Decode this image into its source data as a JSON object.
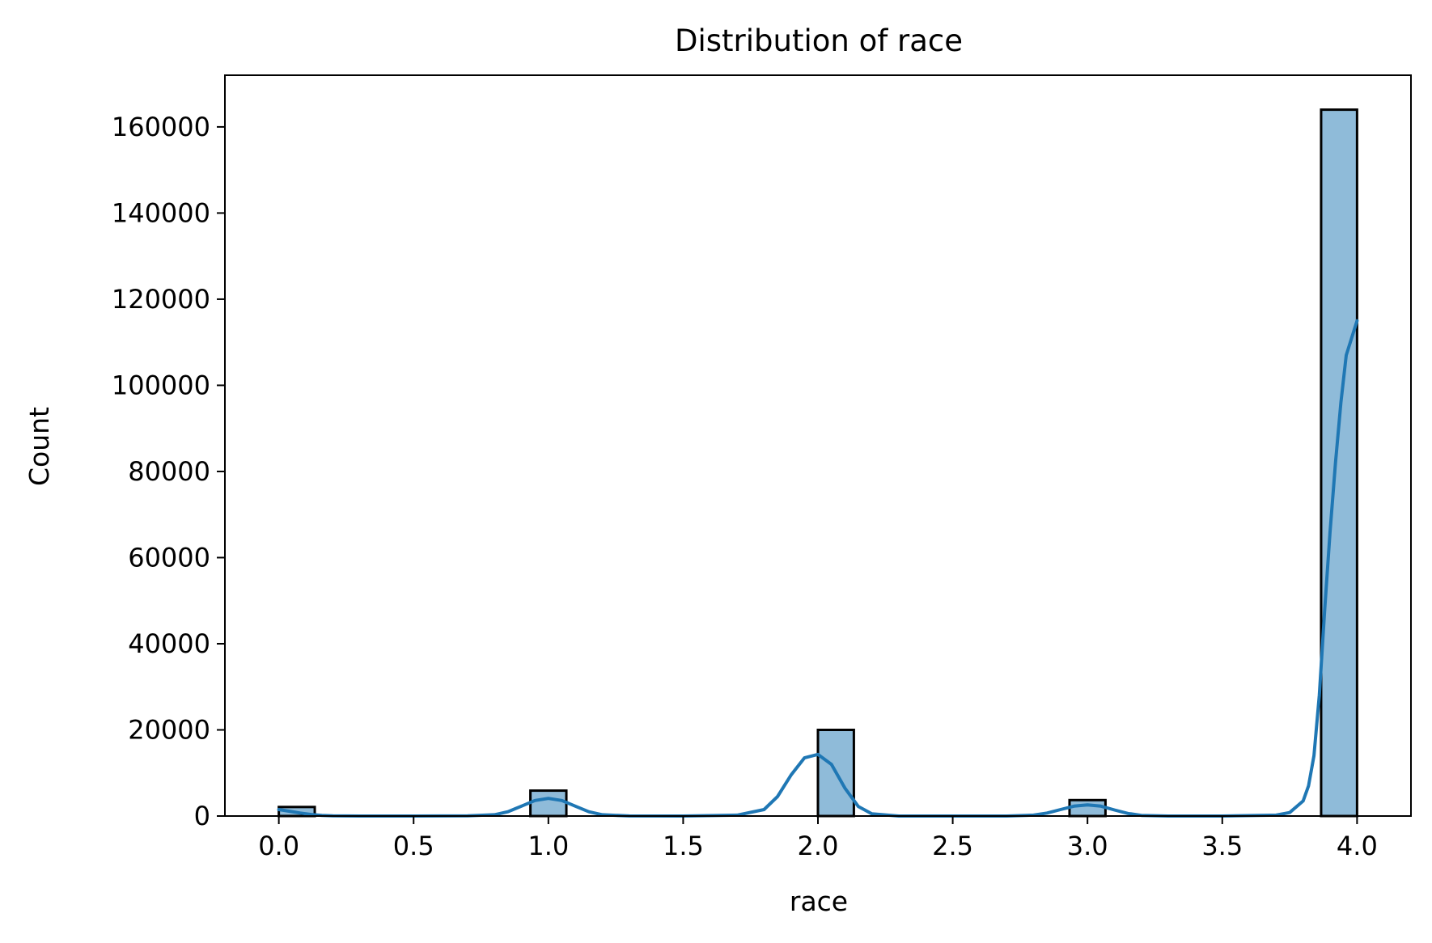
{
  "chart_data": {
    "type": "bar",
    "title": "Distribution of race",
    "xlabel": "race",
    "ylabel": "Count",
    "xlim": [
      -0.2,
      4.2
    ],
    "ylim": [
      0,
      172000
    ],
    "x_ticks": [
      0.0,
      0.5,
      1.0,
      1.5,
      2.0,
      2.5,
      3.0,
      3.5,
      4.0
    ],
    "x_tick_labels": [
      "0.0",
      "0.5",
      "1.0",
      "1.5",
      "2.0",
      "2.5",
      "3.0",
      "3.5",
      "4.0"
    ],
    "y_ticks": [
      0,
      20000,
      40000,
      60000,
      80000,
      100000,
      120000,
      140000,
      160000
    ],
    "y_tick_labels": [
      "0",
      "20000",
      "40000",
      "60000",
      "80000",
      "100000",
      "120000",
      "140000",
      "160000"
    ],
    "bars": [
      {
        "x_start": 0.0,
        "x_end": 0.1333,
        "count": 2100
      },
      {
        "x_start": 0.9333,
        "x_end": 1.0667,
        "count": 5900
      },
      {
        "x_start": 2.0,
        "x_end": 2.1333,
        "count": 20000
      },
      {
        "x_start": 2.9333,
        "x_end": 3.0667,
        "count": 3700
      },
      {
        "x_start": 3.8667,
        "x_end": 4.0,
        "count": 164000
      }
    ],
    "kde": {
      "x": [
        0.0,
        0.04,
        0.08,
        0.12,
        0.16,
        0.2,
        0.3,
        0.5,
        0.7,
        0.8,
        0.85,
        0.9,
        0.95,
        1.0,
        1.05,
        1.1,
        1.15,
        1.2,
        1.3,
        1.5,
        1.7,
        1.8,
        1.85,
        1.9,
        1.95,
        2.0,
        2.05,
        2.1,
        2.15,
        2.2,
        2.3,
        2.5,
        2.7,
        2.8,
        2.85,
        2.9,
        2.95,
        3.0,
        3.05,
        3.1,
        3.15,
        3.2,
        3.3,
        3.5,
        3.7,
        3.75,
        3.8,
        3.82,
        3.84,
        3.86,
        3.88,
        3.9,
        3.92,
        3.94,
        3.96,
        3.98,
        4.0
      ],
      "y": [
        1500,
        1100,
        700,
        350,
        150,
        60,
        0,
        0,
        30,
        300,
        1000,
        2300,
        3600,
        4100,
        3600,
        2300,
        1000,
        300,
        20,
        0,
        200,
        1500,
        4500,
        9500,
        13500,
        14300,
        12000,
        6500,
        2200,
        500,
        0,
        0,
        0,
        200,
        700,
        1500,
        2300,
        2600,
        2300,
        1400,
        600,
        150,
        0,
        0,
        200,
        800,
        3500,
        7000,
        14000,
        28000,
        48000,
        66000,
        82000,
        96000,
        107000,
        111000,
        115000
      ],
      "color": "#1f77b4"
    },
    "bar_fill": "#8fbbd9",
    "bar_edge": "#000000",
    "grid": false,
    "legend": "none"
  }
}
